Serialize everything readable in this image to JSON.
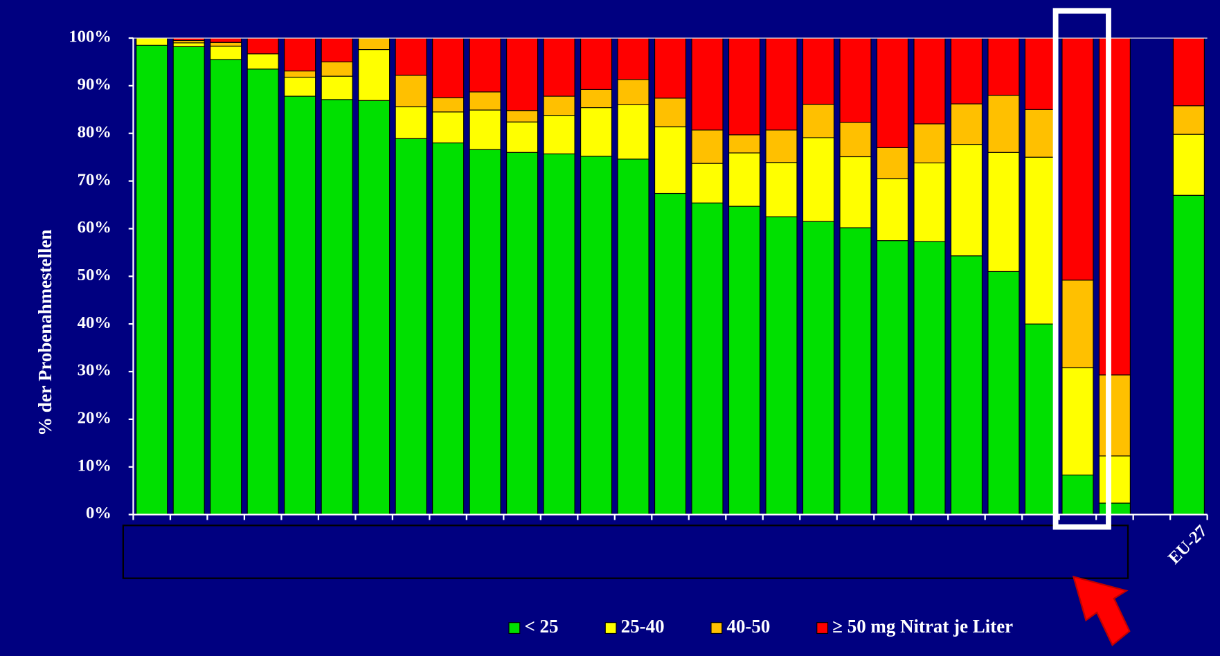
{
  "chart_data": {
    "type": "stacked_bar",
    "y_label": "% der Probenahmestellen",
    "categories": [
      null,
      null,
      null,
      null,
      null,
      null,
      null,
      null,
      null,
      null,
      null,
      null,
      null,
      null,
      null,
      null,
      null,
      null,
      null,
      null,
      null,
      null,
      null,
      null,
      null,
      null,
      null,
      null,
      "EU-27"
    ],
    "series": [
      {
        "name": "< 25",
        "color": "#00e000",
        "values": [
          98.5,
          98.2,
          95.5,
          93.5,
          87.8,
          87.1,
          86.9,
          78.9,
          78,
          76.6,
          76,
          75.7,
          75.2,
          74.6,
          67.4,
          65.4,
          64.7,
          62.5,
          61.5,
          60.2,
          57.5,
          57.3,
          54.3,
          51,
          40,
          8.3,
          2.4,
          null,
          67
        ]
      },
      {
        "name": "25-40",
        "color": "#ffff00",
        "values": [
          1.5,
          0.8,
          2.8,
          3.2,
          4,
          4.9,
          10.7,
          6.7,
          6.5,
          8.3,
          6.4,
          8.1,
          10.2,
          11.4,
          14,
          8.3,
          11.2,
          11.4,
          17.6,
          14.9,
          13,
          16.5,
          23.4,
          25,
          35,
          22.5,
          9.9,
          null,
          12.8
        ]
      },
      {
        "name": "40-50",
        "color": "#ffc000",
        "values": [
          0,
          0.5,
          0.8,
          0,
          1.3,
          3,
          2.4,
          6.6,
          3,
          3.8,
          2.4,
          4,
          3.8,
          5.3,
          6,
          7,
          3.8,
          6.8,
          7,
          7.2,
          6.5,
          8.2,
          8.5,
          12,
          10,
          18.4,
          17,
          null,
          6
        ]
      },
      {
        "name": "≥ 50 mg Nitrat je Liter",
        "color": "#ff0000",
        "values": [
          0,
          0.5,
          0.9,
          3.3,
          6.9,
          5,
          0,
          7.8,
          12.5,
          11.3,
          15.2,
          12.2,
          10.8,
          8.7,
          12.6,
          19.3,
          20.3,
          19.3,
          13.9,
          17.7,
          23,
          18,
          13.8,
          12,
          15,
          50.8,
          70.7,
          null,
          14.2
        ]
      }
    ],
    "ylim": [
      0,
      100
    ],
    "yticks": [
      {
        "value": 0,
        "label": "0%"
      },
      {
        "value": 10,
        "label": "10%"
      },
      {
        "value": 20,
        "label": "20%"
      },
      {
        "value": 30,
        "label": "30%"
      },
      {
        "value": 40,
        "label": "40%"
      },
      {
        "value": 50,
        "label": "50%"
      },
      {
        "value": 60,
        "label": "60%"
      },
      {
        "value": 70,
        "label": "70%"
      },
      {
        "value": 80,
        "label": "80%"
      },
      {
        "value": 90,
        "label": "90%"
      },
      {
        "value": 100,
        "label": "100%"
      }
    ]
  }
}
